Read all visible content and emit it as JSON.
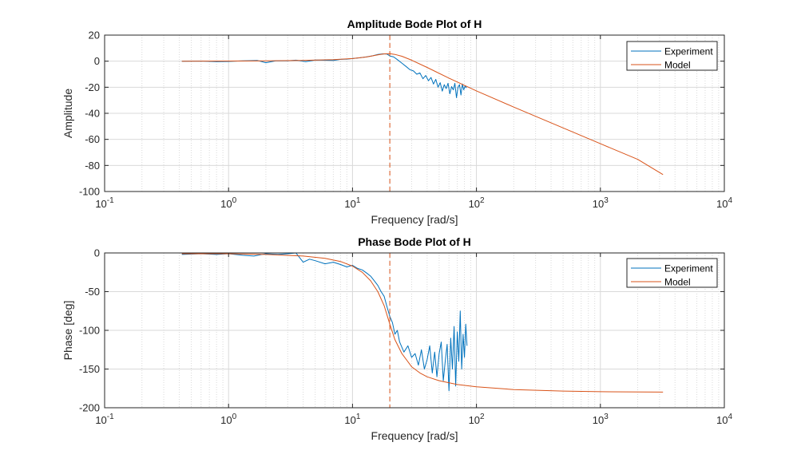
{
  "colors": {
    "experiment": "#0072BD",
    "model": "#D95319",
    "marker": "#D95319",
    "grid": "#d9d9d9",
    "axis": "#262626"
  },
  "chart_data": [
    {
      "type": "line",
      "title": "Amplitude Bode Plot of H",
      "xlabel": "Frequency [rad/s]",
      "ylabel": "Amplitude",
      "xscale": "log",
      "xlim": [
        0.1,
        10000
      ],
      "ylim": [
        -100,
        20
      ],
      "x_ticks": [
        {
          "base": "10",
          "exp": "-1"
        },
        {
          "base": "10",
          "exp": "0"
        },
        {
          "base": "10",
          "exp": "1"
        },
        {
          "base": "10",
          "exp": "2"
        },
        {
          "base": "10",
          "exp": "3"
        },
        {
          "base": "10",
          "exp": "4"
        }
      ],
      "y_ticks": [
        "20",
        "0",
        "-20",
        "-40",
        "-60",
        "-80",
        "-100"
      ],
      "grid": true,
      "legend": "top-right",
      "vertical_marker_x": 20,
      "series": [
        {
          "name": "Experiment",
          "x": [
            0.42,
            0.6,
            0.8,
            1.0,
            1.3,
            1.7,
            2.0,
            2.4,
            3.0,
            3.5,
            4.2,
            5.0,
            6.0,
            7.0,
            8.0,
            9.0,
            10.0,
            11.5,
            13.0,
            14.5,
            16.0,
            17.5,
            19.0,
            20.0,
            21.5,
            23.0,
            25.0,
            27.0,
            29.0,
            31.0,
            33.0,
            35.0,
            37.0,
            39.0,
            41.0,
            43.0,
            45.0,
            47.0,
            49.0,
            51.0,
            53.0,
            55.0,
            57.0,
            59.0,
            61.0,
            63.0,
            65.0,
            67.0,
            69.0,
            71.0,
            73.0,
            75.0,
            77.0,
            79.0,
            81.0,
            83.0
          ],
          "values": [
            0.0,
            0.1,
            -0.3,
            -0.2,
            0.2,
            0.6,
            -1.2,
            0.3,
            0.2,
            0.8,
            -0.4,
            0.9,
            0.7,
            0.5,
            1.4,
            1.6,
            2.0,
            2.6,
            3.3,
            4.1,
            5.2,
            5.6,
            5.4,
            4.0,
            3.2,
            1.2,
            -1.5,
            -4.0,
            -6.5,
            -7.5,
            -10.0,
            -9.0,
            -13.5,
            -11.0,
            -15.0,
            -12.5,
            -17.5,
            -14.0,
            -20.0,
            -16.5,
            -23.0,
            -18.0,
            -21.0,
            -17.0,
            -25.0,
            -19.5,
            -22.0,
            -17.0,
            -28.0,
            -20.0,
            -18.0,
            -26.0,
            -17.5,
            -22.0,
            -19.0,
            -20.5
          ]
        },
        {
          "name": "Model",
          "x": [
            0.42,
            1.0,
            2.0,
            4.0,
            7.0,
            10.0,
            13.0,
            16.0,
            18.0,
            20.0,
            22.0,
            25.0,
            30.0,
            40.0,
            60.0,
            100.0,
            200.0,
            500.0,
            1000.0,
            2000.0,
            3200.0
          ],
          "values": [
            0.0,
            0.1,
            0.3,
            0.6,
            1.2,
            2.0,
            3.2,
            4.8,
            5.6,
            5.8,
            5.2,
            3.8,
            0.8,
            -4.8,
            -13.0,
            -22.8,
            -35.2,
            -51.2,
            -63.3,
            -75.3,
            -87.0
          ]
        }
      ]
    },
    {
      "type": "line",
      "title": "Phase Bode Plot of H",
      "xlabel": "Frequency [rad/s]",
      "ylabel": "Phase [deg]",
      "xscale": "log",
      "xlim": [
        0.1,
        10000
      ],
      "ylim": [
        -200,
        0
      ],
      "x_ticks": [
        {
          "base": "10",
          "exp": "-1"
        },
        {
          "base": "10",
          "exp": "0"
        },
        {
          "base": "10",
          "exp": "1"
        },
        {
          "base": "10",
          "exp": "2"
        },
        {
          "base": "10",
          "exp": "3"
        },
        {
          "base": "10",
          "exp": "4"
        }
      ],
      "y_ticks": [
        "0",
        "-50",
        "-100",
        "-150",
        "-200"
      ],
      "grid": true,
      "legend": "top-right",
      "vertical_marker_x": 20,
      "series": [
        {
          "name": "Experiment",
          "x": [
            0.42,
            0.6,
            0.8,
            1.0,
            1.3,
            1.6,
            2.0,
            2.5,
            3.0,
            3.5,
            4.0,
            4.5,
            5.0,
            6.0,
            7.0,
            8.0,
            9.0,
            10.0,
            11.0,
            12.0,
            13.0,
            14.0,
            15.0,
            16.0,
            17.0,
            18.0,
            19.0,
            20.0,
            21.0,
            22.0,
            23.0,
            24.0,
            26.0,
            28.0,
            30.0,
            32.0,
            34.0,
            36.0,
            38.0,
            40.0,
            42.0,
            44.0,
            46.0,
            48.0,
            50.0,
            52.0,
            54.0,
            56.0,
            58.0,
            60.0,
            62.0,
            64.0,
            66.0,
            68.0,
            70.0,
            72.0,
            74.0,
            76.0,
            78.0,
            80.0,
            82.0,
            84.0
          ],
          "values": [
            -2,
            -1,
            -2,
            -1,
            -3,
            -4,
            -1,
            -2,
            -1,
            0,
            -12,
            -8,
            -10,
            -14,
            -12,
            -15,
            -18,
            -16,
            -20,
            -22,
            -26,
            -30,
            -36,
            -42,
            -50,
            -56,
            -70,
            -82,
            -90,
            -105,
            -100,
            -115,
            -128,
            -120,
            -135,
            -130,
            -145,
            -125,
            -150,
            -138,
            -120,
            -155,
            -128,
            -160,
            -130,
            -115,
            -165,
            -140,
            -118,
            -178,
            -110,
            -150,
            -95,
            -172,
            -102,
            -140,
            -75,
            -150,
            -105,
            -135,
            -92,
            -120
          ]
        },
        {
          "name": "Model",
          "x": [
            0.42,
            1.0,
            2.0,
            4.0,
            6.0,
            8.0,
            10.0,
            12.0,
            14.0,
            16.0,
            18.0,
            20.0,
            22.0,
            25.0,
            30.0,
            35.0,
            40.0,
            50.0,
            70.0,
            100.0,
            200.0,
            500.0,
            1000.0,
            3200.0
          ],
          "values": [
            -1,
            -1,
            -2,
            -4,
            -7,
            -11,
            -17,
            -25,
            -36,
            -50,
            -68,
            -92,
            -112,
            -130,
            -147,
            -155,
            -160,
            -165,
            -170,
            -173,
            -176.5,
            -178.5,
            -179.3,
            -179.8
          ]
        }
      ]
    }
  ]
}
